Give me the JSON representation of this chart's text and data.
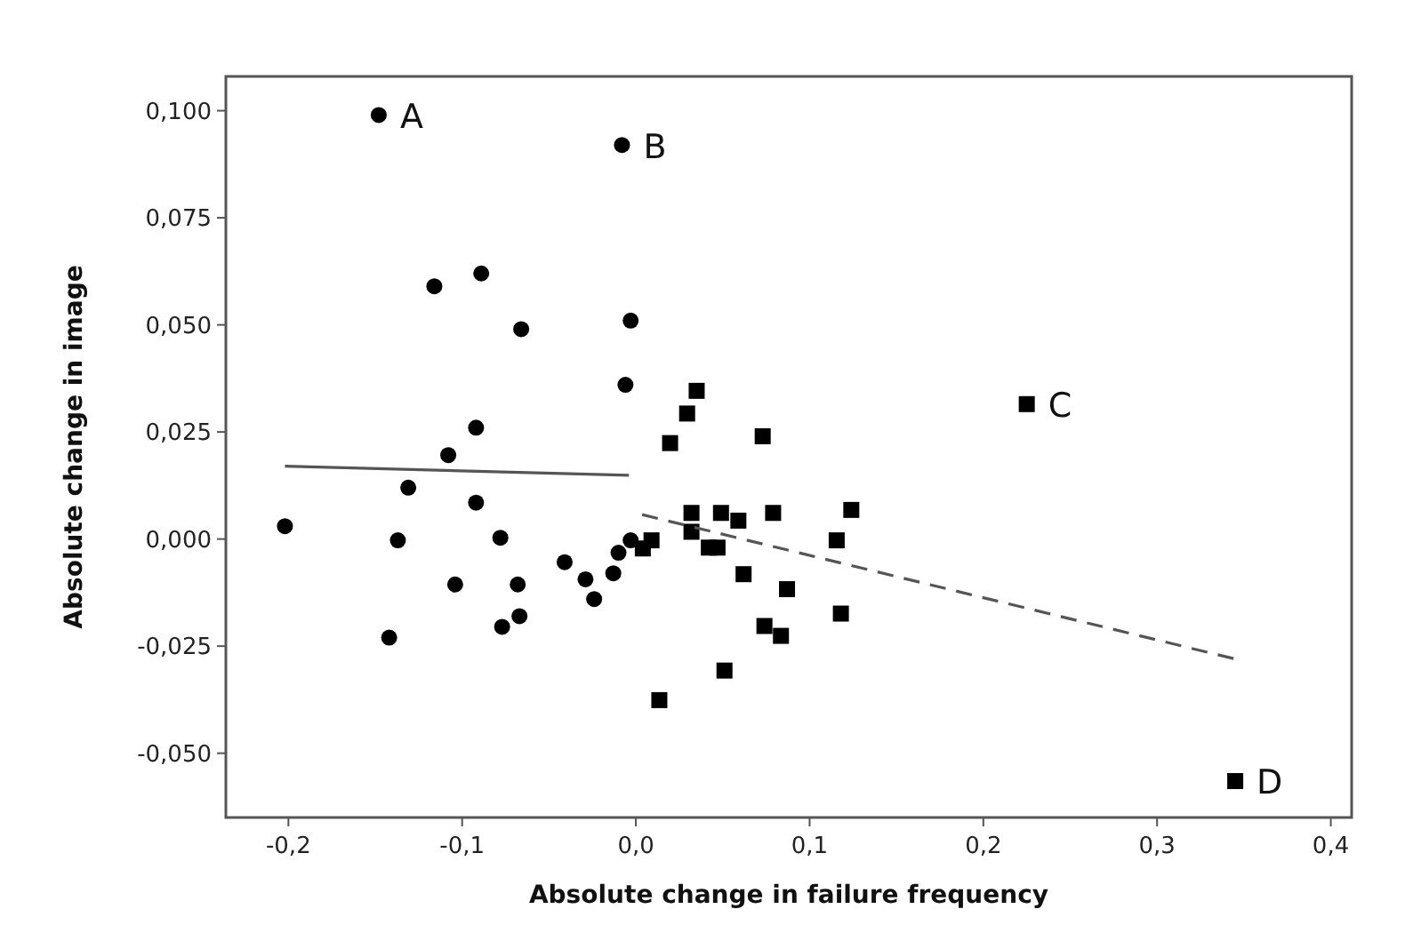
{
  "chart_data": {
    "type": "scatter",
    "xlabel": "Absolute change in failure frequency",
    "ylabel": "Absolute change in image",
    "xlim": [
      -0.236,
      0.412
    ],
    "ylim": [
      -0.065,
      0.108
    ],
    "xticks": [
      {
        "value": -0.2,
        "label": "-0,2"
      },
      {
        "value": -0.1,
        "label": "-0,1"
      },
      {
        "value": 0,
        "label": "0,0"
      },
      {
        "value": 0.1,
        "label": "0,1"
      },
      {
        "value": 0.2,
        "label": "0,2"
      },
      {
        "value": 0.3,
        "label": "0,3"
      },
      {
        "value": 0.4,
        "label": "0,4"
      }
    ],
    "yticks": [
      {
        "value": -0.05,
        "label": "-0,050"
      },
      {
        "value": -0.025,
        "label": "-0,025"
      },
      {
        "value": 0,
        "label": "0,000"
      },
      {
        "value": 0.025,
        "label": "0,025"
      },
      {
        "value": 0.05,
        "label": "0,050"
      },
      {
        "value": 0.075,
        "label": "0,075"
      },
      {
        "value": 0.1,
        "label": "0,100"
      }
    ],
    "grid": false,
    "series": [
      {
        "marker": "circle",
        "color": "#000000",
        "x": [
          -0.148,
          -0.008,
          -0.116,
          -0.089,
          -0.066,
          -0.003,
          -0.006,
          -0.092,
          -0.108,
          -0.131,
          -0.092,
          -0.202,
          -0.137,
          -0.078,
          -0.104,
          -0.068,
          -0.067,
          -0.077,
          -0.142,
          -0.041,
          -0.029,
          -0.024,
          -0.013,
          -0.01,
          -0.003
        ],
        "values": [
          0.099,
          0.092,
          0.059,
          0.062,
          0.049,
          0.051,
          0.036,
          0.026,
          0.0196,
          0.012,
          0.0085,
          0.003,
          -0.0003,
          0.0003,
          -0.0106,
          -0.0106,
          -0.018,
          -0.0205,
          -0.023,
          -0.0054,
          -0.0094,
          -0.014,
          -0.008,
          -0.0032,
          -0.0003
        ]
      },
      {
        "marker": "square",
        "color": "#000000",
        "x": [
          0.004,
          0.009,
          0.0197,
          0.0135,
          0.035,
          0.0295,
          0.073,
          0.032,
          0.049,
          0.059,
          0.079,
          0.124,
          0.1156,
          0.032,
          0.042,
          0.047,
          0.062,
          0.087,
          0.118,
          0.074,
          0.0835,
          0.051,
          0.225,
          0.345
        ],
        "values": [
          -0.0022,
          -0.0003,
          0.0224,
          -0.0376,
          0.0346,
          0.0293,
          0.024,
          0.0061,
          0.0061,
          0.0043,
          0.0061,
          0.0068,
          -0.0003,
          0.0017,
          -0.002,
          -0.002,
          -0.0082,
          -0.0117,
          -0.0174,
          -0.0203,
          -0.0226,
          -0.0307,
          0.0315,
          -0.0565
        ]
      },
      {
        "type": "line",
        "marker": "none",
        "line_style": "solid",
        "color": "#555555",
        "x": [
          -0.202,
          -0.004
        ],
        "values": [
          0.017,
          0.0149
        ]
      },
      {
        "type": "line",
        "marker": "none",
        "line_style": "dashed",
        "color": "#555555",
        "x": [
          0.0036,
          0.344
        ],
        "values": [
          0.0057,
          -0.0279
        ]
      }
    ],
    "annotations": [
      {
        "text": "A",
        "x": -0.148,
        "y": 0.099
      },
      {
        "text": "B",
        "x": -0.008,
        "y": 0.092
      },
      {
        "text": "C",
        "x": 0.225,
        "y": 0.0315
      },
      {
        "text": "D",
        "x": 0.345,
        "y": -0.0565
      }
    ]
  }
}
